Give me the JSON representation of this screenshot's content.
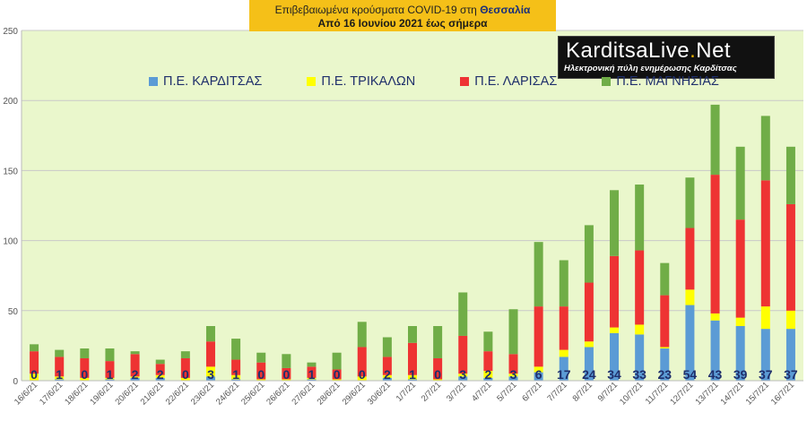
{
  "title": {
    "line1_prefix": "Επιβεβαιωμένα κρούσματα COVID-19 στη",
    "line1_region": "Θεσσαλία",
    "line2": "Από 16 Ιουνίου 2021 έως σήμερα"
  },
  "logo": {
    "name_part1": "Karditsa",
    "name_part2": "Live",
    "name_part3": "Net",
    "tagline": "Ηλεκτρονική πύλη ενημέρωσης Καρδίτσας"
  },
  "colors": {
    "plot_background": "#eaf7cc",
    "karditsa": "#5b9bd5",
    "trikala": "#ffff00",
    "larisa": "#ee3333",
    "magnisia": "#70ad47",
    "label_text": "#1f2f6b"
  },
  "chart_data": {
    "type": "bar",
    "stacked": true,
    "ylim": [
      0,
      250
    ],
    "yticks": [
      0,
      50,
      100,
      150,
      200,
      250
    ],
    "grid": true,
    "legend_position": "top",
    "categories": [
      "16/6/21",
      "17/6/21",
      "18/6/21",
      "19/6/21",
      "20/6/21",
      "21/6/21",
      "22/6/21",
      "23/6/21",
      "24/6/21",
      "25/6/21",
      "26/6/21",
      "27/6/21",
      "28/6/21",
      "29/6/21",
      "30/6/21",
      "1/7/21",
      "2/7/21",
      "3/7/21",
      "4/7/21",
      "5/7/21",
      "6/7/21",
      "7/7/21",
      "8/7/21",
      "9/7/21",
      "10/7/21",
      "11/7/21",
      "12/7/21",
      "13/7/21",
      "14/7/21",
      "15/7/21",
      "16/7/21"
    ],
    "x_tick_labels": [
      "16/6/21",
      "17/6/21",
      "18/6/21",
      "19/6/21",
      "20/6/21",
      "21/6/21",
      "22/6/21",
      "23/6/21",
      "24/6/21",
      "25/6/21",
      "26/6/21",
      "27/6/21",
      "28/6/21",
      "29/6/21",
      "30/6/21",
      "1/7/21",
      "2/7/21",
      "3/7/21",
      "4/7/21",
      "5/7/21",
      "6/7/21",
      "7/7/21",
      "8/7/21",
      "9/7/21",
      "10/7/21",
      "11/7/21",
      "12/7/21",
      "13/7/21",
      "14/7/21",
      "15/7/21",
      "16/7/21"
    ],
    "series": [
      {
        "name": "Π.Ε. ΚΑΡΔΙΤΣΑΣ",
        "color_key": "karditsa",
        "values": [
          0,
          1,
          0,
          1,
          2,
          2,
          0,
          3,
          1,
          0,
          0,
          1,
          0,
          0,
          2,
          1,
          0,
          3,
          2,
          3,
          6,
          17,
          24,
          34,
          33,
          23,
          54,
          43,
          39,
          37,
          37
        ]
      },
      {
        "name": "Π.Ε. ΤΡΙΚΑΛΩΝ",
        "color_key": "trikala",
        "values": [
          5,
          2,
          2,
          1,
          1,
          2,
          2,
          7,
          3,
          1,
          1,
          1,
          1,
          3,
          2,
          3,
          1,
          2,
          5,
          2,
          4,
          5,
          4,
          4,
          7,
          1,
          11,
          5,
          6,
          16,
          13
        ]
      },
      {
        "name": "Π.Ε. ΛΑΡΙΣΑΣ",
        "color_key": "larisa",
        "values": [
          16,
          14,
          14,
          12,
          16,
          8,
          14,
          18,
          11,
          12,
          8,
          8,
          7,
          21,
          13,
          23,
          15,
          27,
          14,
          14,
          43,
          31,
          42,
          51,
          53,
          37,
          44,
          99,
          70,
          90,
          76
        ]
      },
      {
        "name": "Π.Ε. ΜΑΓΝΗΣΙΑΣ",
        "color_key": "magnisia",
        "values": [
          5,
          5,
          7,
          9,
          2,
          3,
          5,
          11,
          15,
          7,
          10,
          3,
          12,
          18,
          14,
          12,
          23,
          31,
          14,
          32,
          46,
          33,
          41,
          47,
          47,
          23,
          36,
          50,
          52,
          46,
          41
        ]
      }
    ],
    "data_labels_series": "Π.Ε. ΚΑΡΔΙΤΣΑΣ"
  }
}
